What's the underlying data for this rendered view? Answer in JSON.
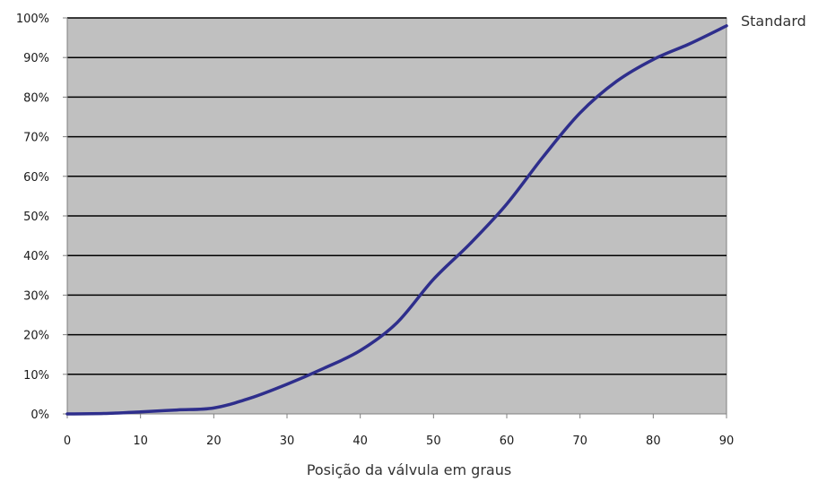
{
  "chart_data": {
    "type": "line",
    "title": "",
    "xlabel": "Posição da válvula em graus",
    "ylabel": "",
    "xlim": [
      0,
      90
    ],
    "ylim": [
      0,
      100
    ],
    "x_ticks": [
      0,
      10,
      20,
      30,
      40,
      50,
      60,
      70,
      80,
      90
    ],
    "y_ticks": [
      0,
      10,
      20,
      30,
      40,
      50,
      60,
      70,
      80,
      90,
      100
    ],
    "y_tick_labels": [
      "0%",
      "10%",
      "20%",
      "30%",
      "40%",
      "50%",
      "60%",
      "70%",
      "80%",
      "90%",
      "100%"
    ],
    "grid": "horizontal",
    "legend": "right",
    "series": [
      {
        "name": "Standard",
        "x": [
          0,
          5,
          10,
          15,
          20,
          25,
          30,
          35,
          40,
          45,
          50,
          55,
          60,
          65,
          70,
          75,
          80,
          85,
          90
        ],
        "y": [
          0,
          0.1,
          0.5,
          1,
          1.5,
          4,
          7.5,
          11.5,
          16,
          23,
          34,
          43,
          53,
          65,
          76,
          84,
          89.5,
          93.5,
          98
        ]
      }
    ]
  },
  "colors": {
    "plot_background": "#c0c0c0",
    "line": "#2e2e8c",
    "gridline": "#000000",
    "axis": "#808080"
  }
}
